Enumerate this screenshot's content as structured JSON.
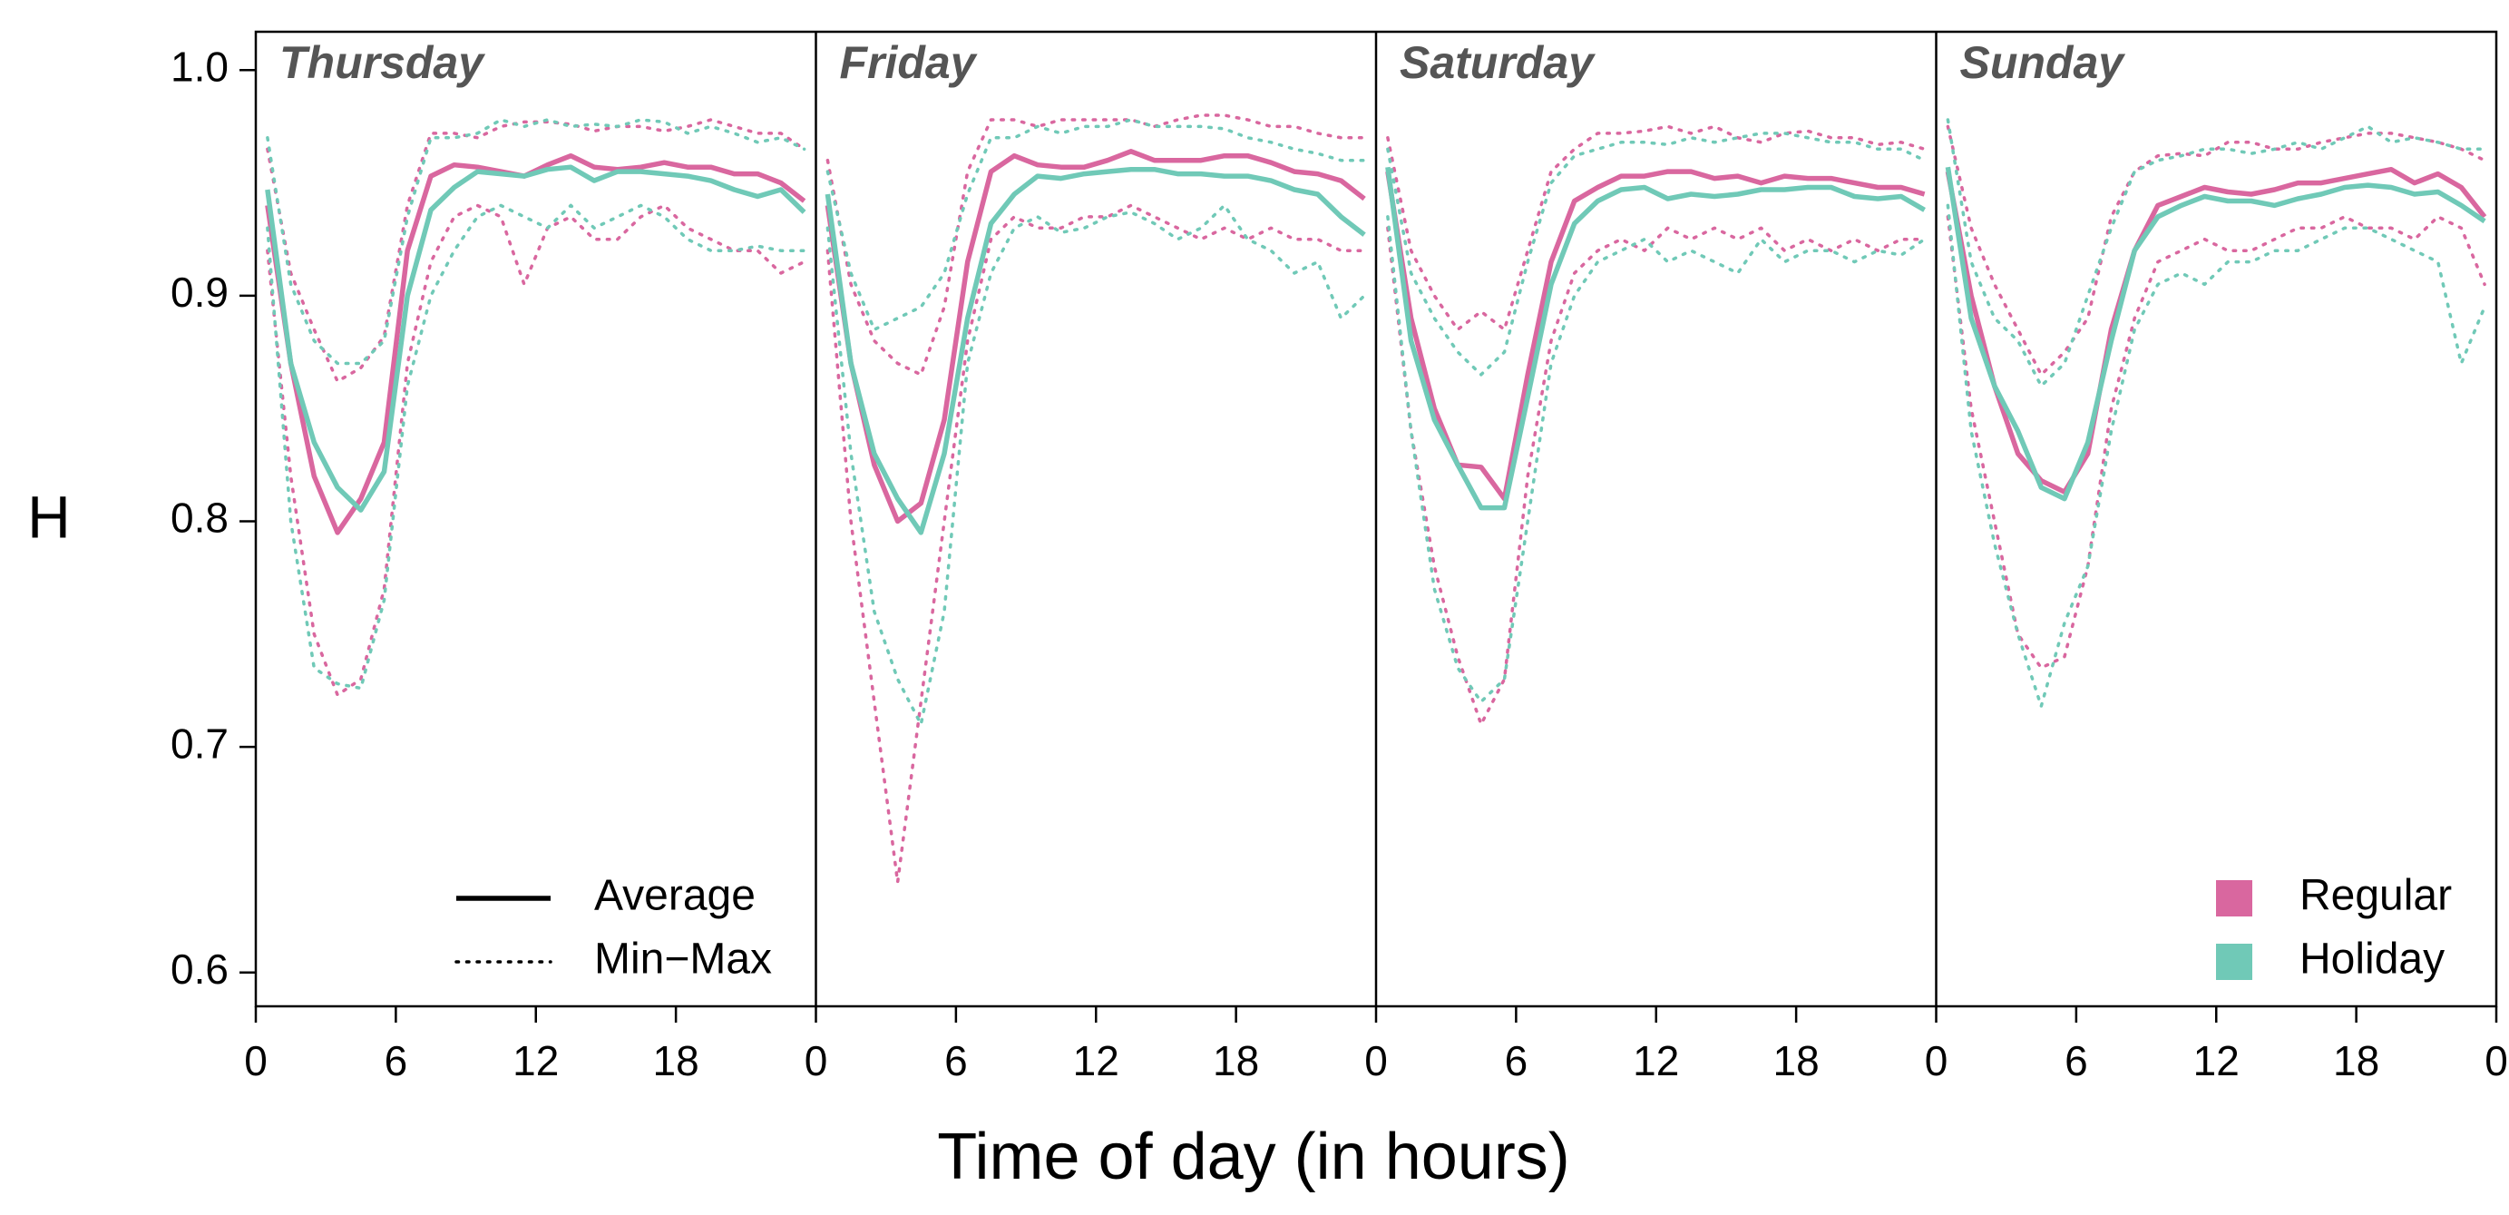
{
  "chart_data": {
    "type": "line",
    "xlabel": "Time of day (in hours)",
    "ylabel": "H",
    "xlim": [
      0,
      24
    ],
    "xticks": [
      0,
      6,
      12,
      18,
      {
        "value": 24,
        "label": "0"
      }
    ],
    "ylim": [
      0.585,
      1.017
    ],
    "yticks": [
      0.6,
      0.7,
      0.8,
      0.9,
      {
        "value": 1.0,
        "label": "1.0"
      }
    ],
    "x": [
      0.5,
      1.5,
      2.5,
      3.5,
      4.5,
      5.5,
      6.5,
      7.5,
      8.5,
      9.5,
      10.5,
      11.5,
      12.5,
      13.5,
      14.5,
      15.5,
      16.5,
      17.5,
      18.5,
      19.5,
      20.5,
      21.5,
      22.5,
      23.5
    ],
    "legend_lines": [
      {
        "label": "Average",
        "style": "solid"
      },
      {
        "label": "Min−Max",
        "style": "dotted"
      }
    ],
    "legend_colors": [
      {
        "label": "Regular",
        "color": "#d9679f"
      },
      {
        "label": "Holiday",
        "color": "#70c9b7"
      }
    ],
    "panels": [
      {
        "title": "Thursday",
        "series": [
          {
            "color": "#d9679f",
            "style": "solid",
            "values": [
              0.94,
              0.87,
              0.82,
              0.795,
              0.81,
              0.835,
              0.92,
              0.953,
              0.958,
              0.957,
              0.955,
              0.953,
              0.958,
              0.962,
              0.957,
              0.956,
              0.957,
              0.959,
              0.957,
              0.957,
              0.954,
              0.954,
              0.95,
              0.942
            ]
          },
          {
            "color": "#70c9b7",
            "style": "solid",
            "values": [
              0.947,
              0.87,
              0.835,
              0.815,
              0.805,
              0.822,
              0.9,
              0.938,
              0.948,
              0.955,
              0.954,
              0.953,
              0.956,
              0.957,
              0.951,
              0.955,
              0.955,
              0.954,
              0.953,
              0.951,
              0.947,
              0.944,
              0.947,
              0.937
            ]
          },
          {
            "color": "#d9679f",
            "style": "dotted",
            "values": [
              0.965,
              0.91,
              0.885,
              0.862,
              0.868,
              0.882,
              0.94,
              0.972,
              0.972,
              0.97,
              0.975,
              0.977,
              0.977,
              0.976,
              0.973,
              0.975,
              0.975,
              0.973,
              0.975,
              0.978,
              0.975,
              0.972,
              0.972,
              0.965
            ]
          },
          {
            "color": "#d9679f",
            "style": "dotted",
            "values": [
              0.92,
              0.82,
              0.75,
              0.723,
              0.73,
              0.77,
              0.87,
              0.915,
              0.935,
              0.94,
              0.935,
              0.905,
              0.93,
              0.935,
              0.925,
              0.925,
              0.935,
              0.94,
              0.93,
              0.925,
              0.92,
              0.92,
              0.91,
              0.915
            ]
          },
          {
            "color": "#70c9b7",
            "style": "dotted",
            "values": [
              0.97,
              0.905,
              0.88,
              0.87,
              0.87,
              0.88,
              0.935,
              0.97,
              0.97,
              0.972,
              0.978,
              0.975,
              0.978,
              0.975,
              0.976,
              0.975,
              0.978,
              0.977,
              0.972,
              0.975,
              0.972,
              0.968,
              0.97,
              0.965
            ]
          },
          {
            "color": "#70c9b7",
            "style": "dotted",
            "values": [
              0.93,
              0.8,
              0.735,
              0.728,
              0.726,
              0.765,
              0.86,
              0.9,
              0.92,
              0.935,
              0.94,
              0.935,
              0.93,
              0.94,
              0.93,
              0.935,
              0.94,
              0.935,
              0.925,
              0.92,
              0.92,
              0.922,
              0.92,
              0.92
            ]
          }
        ]
      },
      {
        "title": "Friday",
        "series": [
          {
            "color": "#d9679f",
            "style": "solid",
            "values": [
              0.94,
              0.87,
              0.825,
              0.8,
              0.808,
              0.845,
              0.915,
              0.955,
              0.962,
              0.958,
              0.957,
              0.957,
              0.96,
              0.964,
              0.96,
              0.96,
              0.96,
              0.962,
              0.962,
              0.959,
              0.955,
              0.954,
              0.951,
              0.943
            ]
          },
          {
            "color": "#70c9b7",
            "style": "solid",
            "values": [
              0.945,
              0.87,
              0.83,
              0.81,
              0.795,
              0.83,
              0.89,
              0.932,
              0.945,
              0.953,
              0.952,
              0.954,
              0.955,
              0.956,
              0.956,
              0.954,
              0.954,
              0.953,
              0.953,
              0.951,
              0.947,
              0.945,
              0.935,
              0.927
            ]
          },
          {
            "color": "#d9679f",
            "style": "dotted",
            "values": [
              0.96,
              0.905,
              0.88,
              0.87,
              0.865,
              0.895,
              0.955,
              0.978,
              0.978,
              0.975,
              0.978,
              0.978,
              0.978,
              0.978,
              0.975,
              0.978,
              0.98,
              0.98,
              0.978,
              0.975,
              0.975,
              0.972,
              0.97,
              0.97
            ]
          },
          {
            "color": "#d9679f",
            "style": "dotted",
            "values": [
              0.92,
              0.8,
              0.72,
              0.64,
              0.72,
              0.8,
              0.88,
              0.925,
              0.935,
              0.93,
              0.93,
              0.935,
              0.935,
              0.94,
              0.935,
              0.93,
              0.925,
              0.93,
              0.925,
              0.93,
              0.925,
              0.925,
              0.92,
              0.92
            ]
          },
          {
            "color": "#70c9b7",
            "style": "dotted",
            "values": [
              0.955,
              0.91,
              0.885,
              0.89,
              0.895,
              0.91,
              0.945,
              0.97,
              0.97,
              0.975,
              0.972,
              0.975,
              0.975,
              0.978,
              0.975,
              0.975,
              0.975,
              0.974,
              0.97,
              0.968,
              0.965,
              0.963,
              0.96,
              0.96
            ]
          },
          {
            "color": "#70c9b7",
            "style": "dotted",
            "values": [
              0.93,
              0.83,
              0.76,
              0.73,
              0.71,
              0.76,
              0.87,
              0.91,
              0.93,
              0.935,
              0.928,
              0.93,
              0.935,
              0.937,
              0.932,
              0.925,
              0.93,
              0.94,
              0.925,
              0.92,
              0.91,
              0.915,
              0.89,
              0.9
            ]
          }
        ]
      },
      {
        "title": "Saturday",
        "series": [
          {
            "color": "#d9679f",
            "style": "solid",
            "values": [
              0.955,
              0.89,
              0.85,
              0.825,
              0.824,
              0.81,
              0.865,
              0.915,
              0.942,
              0.948,
              0.953,
              0.953,
              0.955,
              0.955,
              0.952,
              0.953,
              0.95,
              0.953,
              0.952,
              0.952,
              0.95,
              0.948,
              0.948,
              0.945
            ]
          },
          {
            "color": "#70c9b7",
            "style": "solid",
            "values": [
              0.957,
              0.88,
              0.845,
              0.825,
              0.806,
              0.806,
              0.855,
              0.905,
              0.932,
              0.942,
              0.947,
              0.948,
              0.943,
              0.945,
              0.944,
              0.945,
              0.947,
              0.947,
              0.948,
              0.948,
              0.944,
              0.943,
              0.944,
              0.938
            ]
          },
          {
            "color": "#d9679f",
            "style": "dotted",
            "values": [
              0.97,
              0.92,
              0.9,
              0.885,
              0.893,
              0.885,
              0.92,
              0.955,
              0.965,
              0.972,
              0.972,
              0.973,
              0.975,
              0.972,
              0.975,
              0.97,
              0.968,
              0.972,
              0.973,
              0.97,
              0.97,
              0.967,
              0.968,
              0.965
            ]
          },
          {
            "color": "#d9679f",
            "style": "dotted",
            "values": [
              0.93,
              0.84,
              0.78,
              0.74,
              0.71,
              0.73,
              0.82,
              0.88,
              0.91,
              0.92,
              0.925,
              0.92,
              0.93,
              0.925,
              0.93,
              0.925,
              0.93,
              0.92,
              0.925,
              0.92,
              0.925,
              0.92,
              0.925,
              0.925
            ]
          },
          {
            "color": "#70c9b7",
            "style": "dotted",
            "values": [
              0.965,
              0.91,
              0.89,
              0.875,
              0.865,
              0.875,
              0.915,
              0.95,
              0.962,
              0.965,
              0.968,
              0.968,
              0.967,
              0.97,
              0.968,
              0.97,
              0.972,
              0.972,
              0.97,
              0.968,
              0.968,
              0.965,
              0.965,
              0.96
            ]
          },
          {
            "color": "#70c9b7",
            "style": "dotted",
            "values": [
              0.935,
              0.84,
              0.77,
              0.735,
              0.72,
              0.73,
              0.8,
              0.87,
              0.9,
              0.915,
              0.92,
              0.925,
              0.915,
              0.92,
              0.915,
              0.91,
              0.925,
              0.915,
              0.92,
              0.92,
              0.915,
              0.92,
              0.918,
              0.925
            ]
          }
        ]
      },
      {
        "title": "Sunday",
        "series": [
          {
            "color": "#d9679f",
            "style": "solid",
            "values": [
              0.955,
              0.9,
              0.86,
              0.83,
              0.818,
              0.813,
              0.83,
              0.885,
              0.92,
              0.94,
              0.944,
              0.948,
              0.946,
              0.945,
              0.947,
              0.95,
              0.95,
              0.952,
              0.954,
              0.956,
              0.95,
              0.954,
              0.948,
              0.935
            ]
          },
          {
            "color": "#70c9b7",
            "style": "solid",
            "values": [
              0.957,
              0.89,
              0.86,
              0.84,
              0.815,
              0.81,
              0.835,
              0.88,
              0.92,
              0.935,
              0.94,
              0.944,
              0.942,
              0.942,
              0.94,
              0.943,
              0.945,
              0.948,
              0.949,
              0.948,
              0.945,
              0.946,
              0.94,
              0.933
            ]
          },
          {
            "color": "#d9679f",
            "style": "dotted",
            "values": [
              0.975,
              0.93,
              0.905,
              0.885,
              0.865,
              0.875,
              0.89,
              0.935,
              0.955,
              0.962,
              0.963,
              0.962,
              0.968,
              0.968,
              0.965,
              0.965,
              0.968,
              0.97,
              0.972,
              0.972,
              0.97,
              0.968,
              0.965,
              0.96
            ]
          },
          {
            "color": "#d9679f",
            "style": "dotted",
            "values": [
              0.935,
              0.85,
              0.8,
              0.75,
              0.735,
              0.74,
              0.78,
              0.85,
              0.89,
              0.915,
              0.92,
              0.925,
              0.92,
              0.92,
              0.925,
              0.93,
              0.93,
              0.935,
              0.93,
              0.93,
              0.925,
              0.935,
              0.93,
              0.905
            ]
          },
          {
            "color": "#70c9b7",
            "style": "dotted",
            "values": [
              0.978,
              0.915,
              0.89,
              0.88,
              0.86,
              0.87,
              0.9,
              0.93,
              0.955,
              0.96,
              0.962,
              0.965,
              0.965,
              0.963,
              0.965,
              0.968,
              0.965,
              0.97,
              0.975,
              0.968,
              0.97,
              0.968,
              0.965,
              0.965
            ]
          },
          {
            "color": "#70c9b7",
            "style": "dotted",
            "values": [
              0.94,
              0.84,
              0.79,
              0.75,
              0.718,
              0.755,
              0.78,
              0.84,
              0.885,
              0.905,
              0.91,
              0.905,
              0.915,
              0.915,
              0.92,
              0.92,
              0.925,
              0.93,
              0.93,
              0.925,
              0.92,
              0.915,
              0.87,
              0.895
            ]
          }
        ]
      }
    ]
  }
}
